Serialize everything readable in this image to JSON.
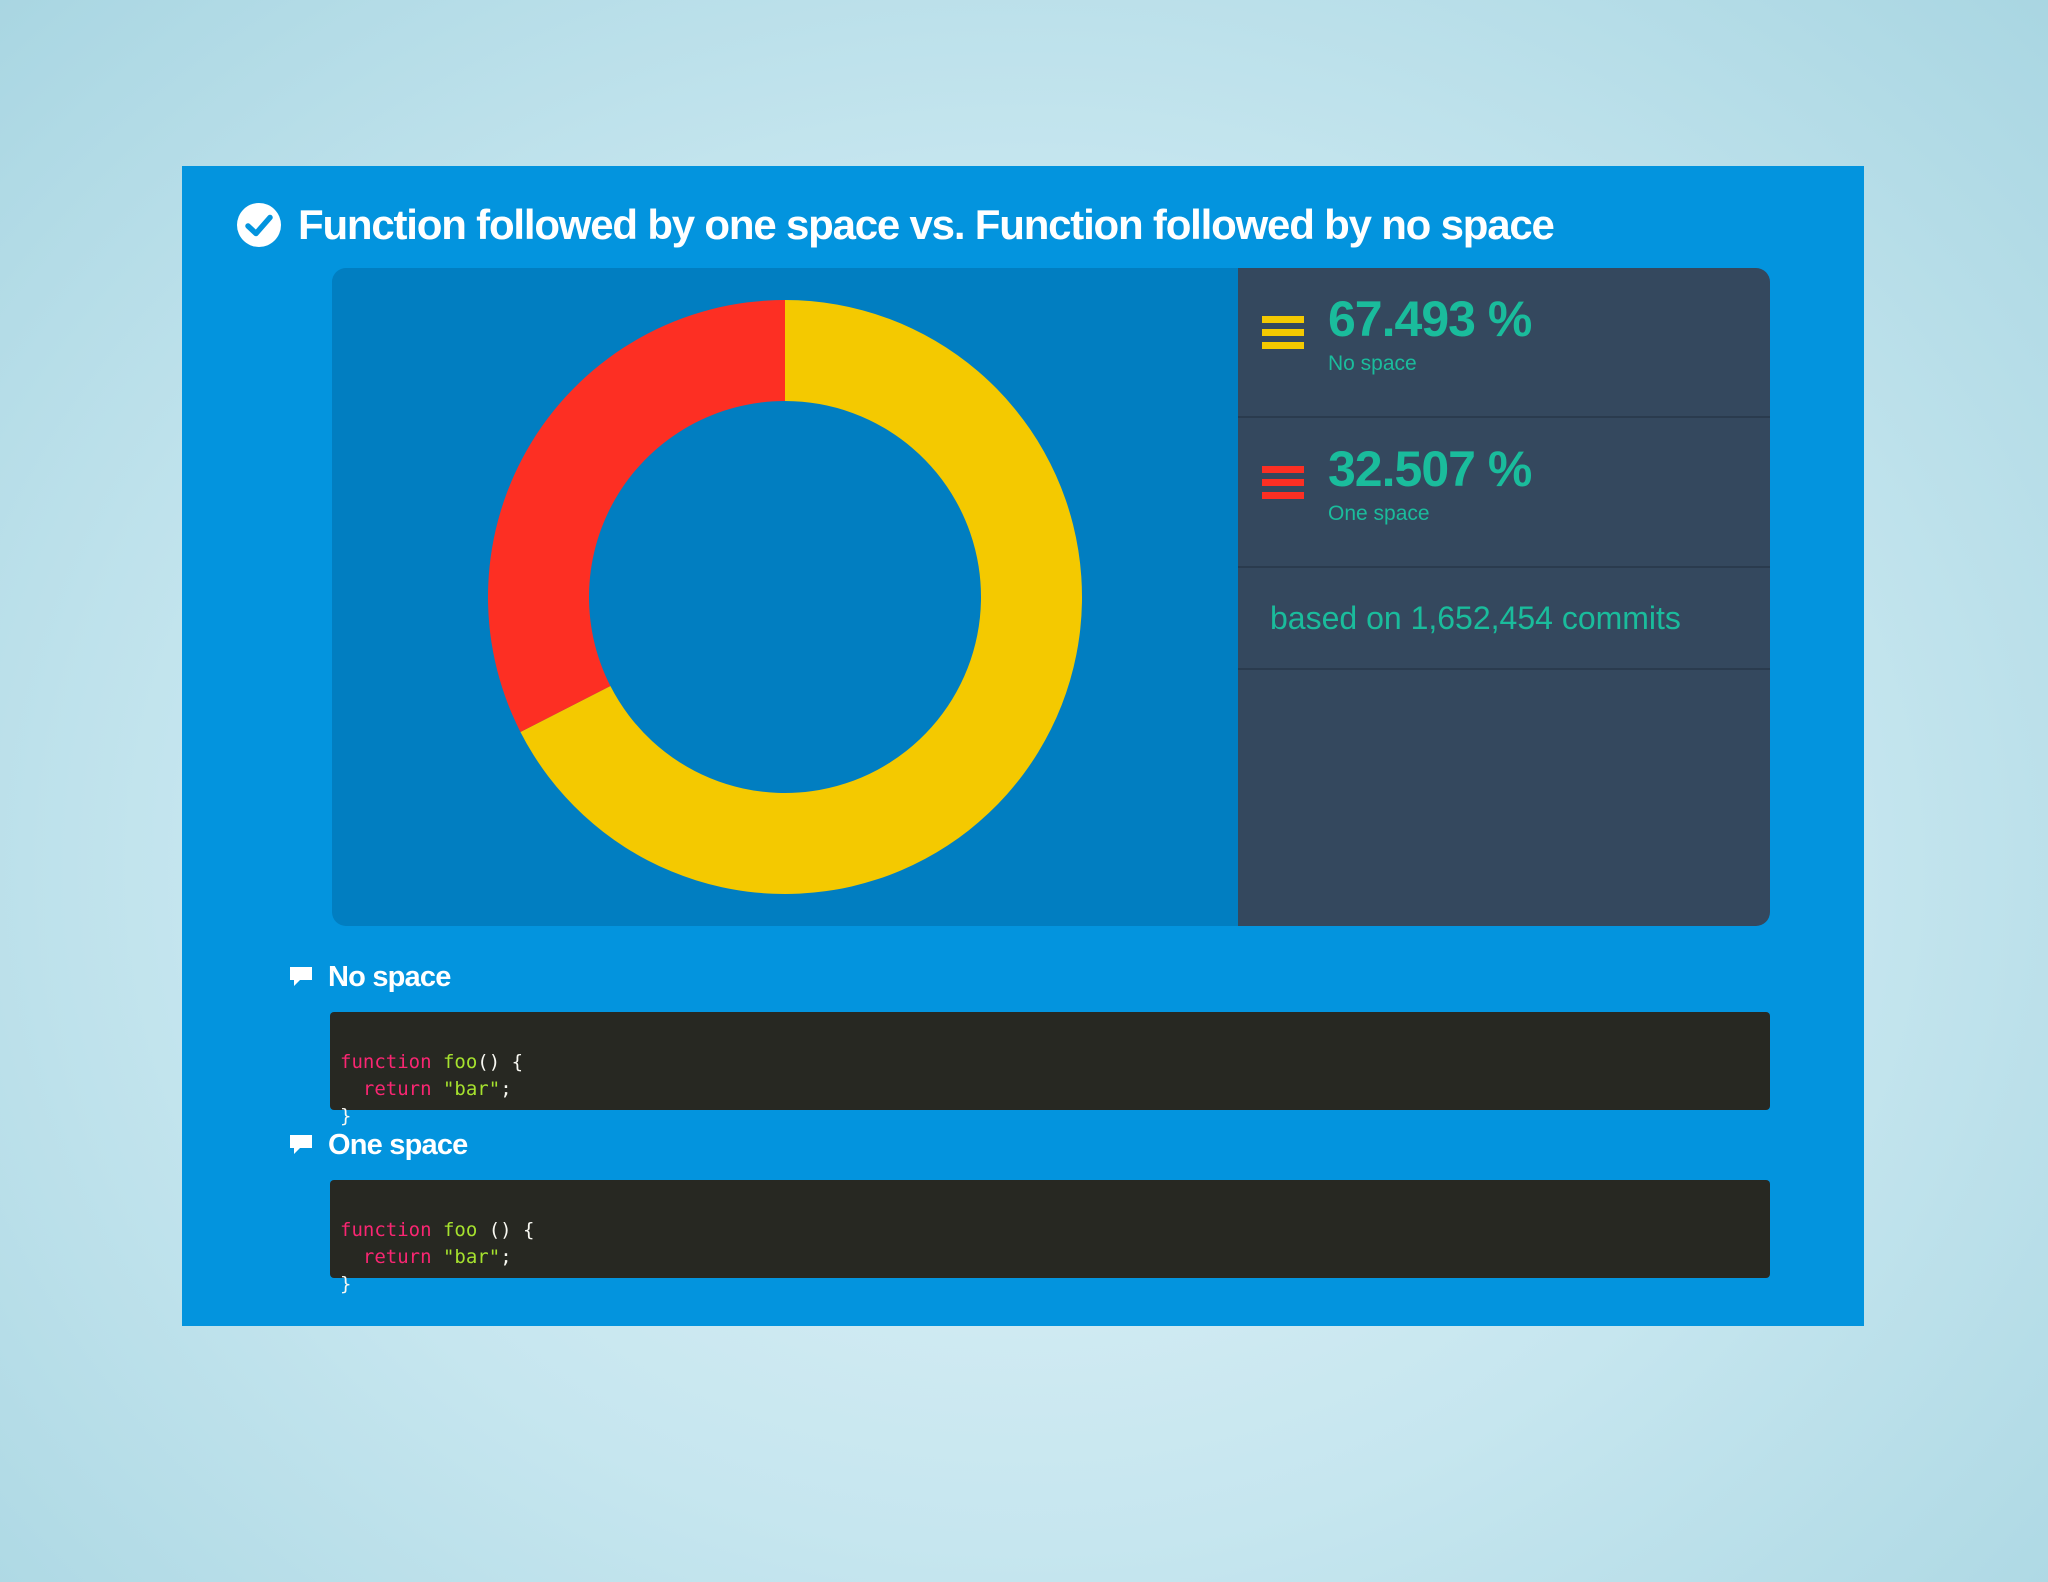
{
  "title": "Function followed by one space vs. Function followed by no space",
  "icons": {
    "title_icon": "check-circle-icon",
    "section_icon": "comment-icon",
    "legend_icon": "bars-icon"
  },
  "colors": {
    "card_bg": "#0394de",
    "chart_bg": "#017ec1",
    "stats_bg": "#34485e",
    "stat_text": "#1abc9c",
    "no_space": "#f4c900",
    "one_space": "#fd2f23",
    "code_bg": "#272822"
  },
  "chart_data": {
    "type": "pie",
    "variant": "donut",
    "series": [
      {
        "name": "No space",
        "value": 67.493,
        "color": "#f4c900"
      },
      {
        "name": "One space",
        "value": 32.507,
        "color": "#fd2f23"
      }
    ]
  },
  "stats": [
    {
      "value": "67.493 %",
      "label": "No space",
      "color": "#f4c900"
    },
    {
      "value": "32.507 %",
      "label": "One space",
      "color": "#fd2f23"
    }
  ],
  "commits_text": "based on 1,652,454 commits",
  "examples": [
    {
      "title": "No space",
      "code": [
        {
          "keyword": "function",
          "name": "foo",
          "sig": "() {"
        },
        {
          "keyword": "return",
          "string": "\"bar\"",
          "end": ";"
        },
        {
          "close": "}"
        }
      ]
    },
    {
      "title": "One space",
      "code": [
        {
          "keyword": "function",
          "name": "foo",
          "sig": " () {"
        },
        {
          "keyword": "return",
          "string": "\"bar\"",
          "end": ";"
        },
        {
          "close": "}"
        }
      ]
    }
  ]
}
